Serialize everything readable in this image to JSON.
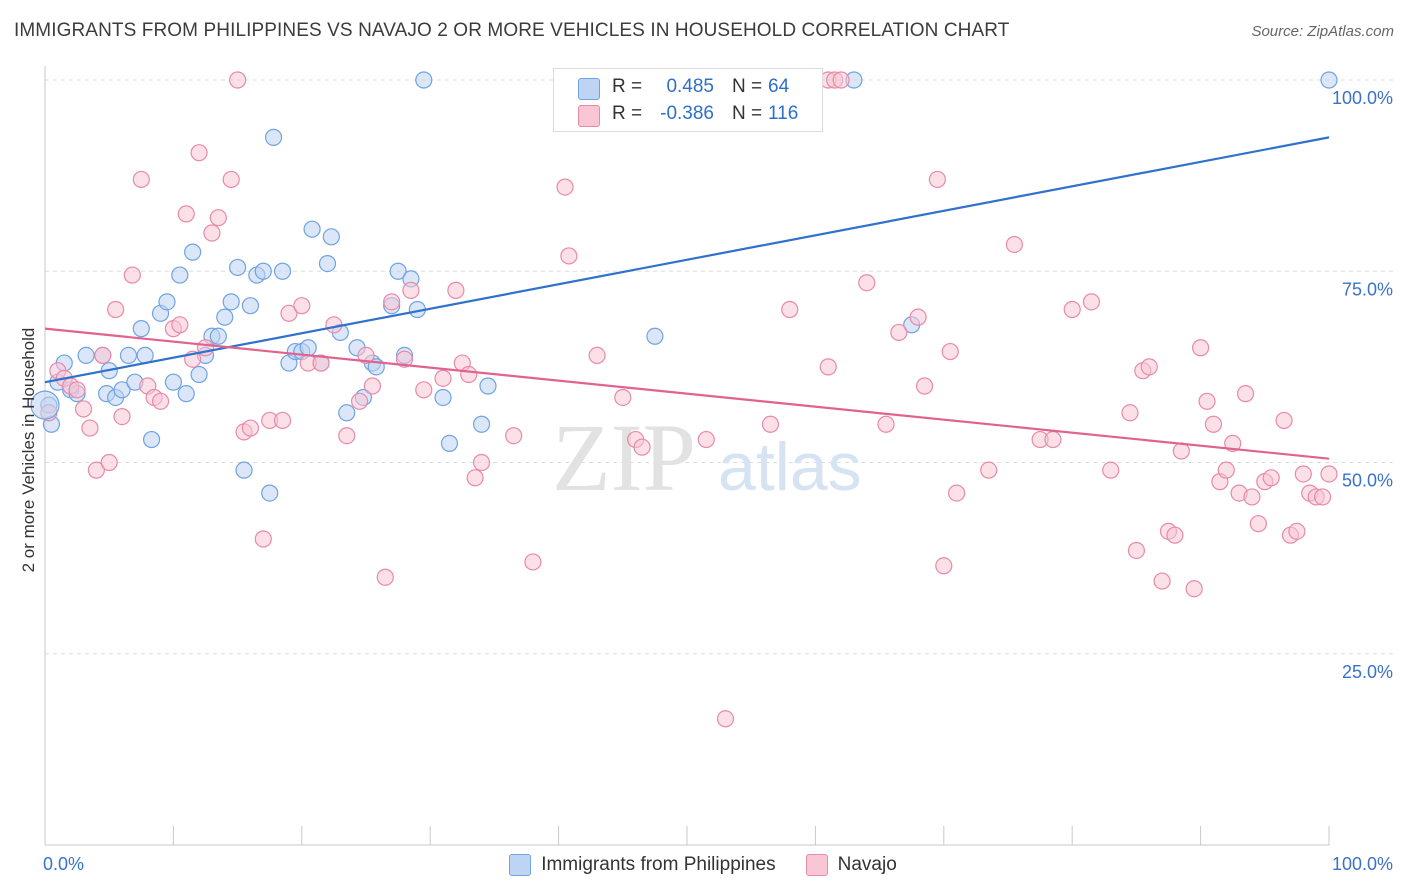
{
  "title": "IMMIGRANTS FROM PHILIPPINES VS NAVAJO 2 OR MORE VEHICLES IN HOUSEHOLD CORRELATION CHART",
  "source": "Source: ZipAtlas.com",
  "watermark": {
    "zip": "ZIP",
    "atlas": "atlas"
  },
  "stats": [
    {
      "r_label": "R =",
      "r_value": "0.485",
      "n_label": "N =",
      "n_value": "64",
      "color": "#6fa3e3",
      "fill": "#bdd4f3"
    },
    {
      "r_label": "R =",
      "r_value": "-0.386",
      "n_label": "N =",
      "n_value": "116",
      "color": "#e88aa8",
      "fill": "#f8c6d5"
    }
  ],
  "legend": [
    {
      "label": "Immigrants from Philippines",
      "fill": "#bdd4f3",
      "stroke": "#6fa3e3"
    },
    {
      "label": "Navajo",
      "fill": "#f8c6d5",
      "stroke": "#e88aa8"
    }
  ],
  "chart_data": {
    "type": "scatter",
    "ylabel": "2 or more Vehicles in Household",
    "xlim": [
      0,
      100
    ],
    "ylim": [
      0,
      100
    ],
    "x_tick_labels": [
      "0.0%",
      "100.0%"
    ],
    "y_ticks": [
      25,
      50,
      75,
      100
    ],
    "y_tick_labels": [
      "25.0%",
      "50.0%",
      "75.0%",
      "100.0%"
    ],
    "grid": true,
    "series": [
      {
        "name": "Immigrants from Philippines",
        "color": "#6fa3e3",
        "fill": "#bdd4f3",
        "line_color": "#2f72cc",
        "trend": [
          [
            0,
            60.5
          ],
          [
            100,
            92.5
          ]
        ],
        "points": [
          [
            0.3,
            57.5
          ],
          [
            0.5,
            55.0
          ],
          [
            1.0,
            60.5
          ],
          [
            1.5,
            63.0
          ],
          [
            2.0,
            59.5
          ],
          [
            2.5,
            59.0
          ],
          [
            3.2,
            64.0
          ],
          [
            4.5,
            64.0
          ],
          [
            4.8,
            59.0
          ],
          [
            5.0,
            62.0
          ],
          [
            5.5,
            58.5
          ],
          [
            6.0,
            59.5
          ],
          [
            6.5,
            64.0
          ],
          [
            7.0,
            60.5
          ],
          [
            7.5,
            67.5
          ],
          [
            7.8,
            64.0
          ],
          [
            8.3,
            53.0
          ],
          [
            9.0,
            69.5
          ],
          [
            9.5,
            71.0
          ],
          [
            10.0,
            60.5
          ],
          [
            10.5,
            74.5
          ],
          [
            11.0,
            59.0
          ],
          [
            11.5,
            77.5
          ],
          [
            12.0,
            61.5
          ],
          [
            12.5,
            64.0
          ],
          [
            13.0,
            66.5
          ],
          [
            13.5,
            66.5
          ],
          [
            14.0,
            69.0
          ],
          [
            14.5,
            71.0
          ],
          [
            15.0,
            75.5
          ],
          [
            15.5,
            49.0
          ],
          [
            16.0,
            70.5
          ],
          [
            16.5,
            74.5
          ],
          [
            17.0,
            75.0
          ],
          [
            17.5,
            46.0
          ],
          [
            17.8,
            92.5
          ],
          [
            18.5,
            75.0
          ],
          [
            19.0,
            63.0
          ],
          [
            19.5,
            64.5
          ],
          [
            20.0,
            64.5
          ],
          [
            20.5,
            65.0
          ],
          [
            20.8,
            80.5
          ],
          [
            21.5,
            63.0
          ],
          [
            22.0,
            76.0
          ],
          [
            22.3,
            79.5
          ],
          [
            23.0,
            67.0
          ],
          [
            23.5,
            56.5
          ],
          [
            24.3,
            65.0
          ],
          [
            24.8,
            58.5
          ],
          [
            25.5,
            63.0
          ],
          [
            25.8,
            62.5
          ],
          [
            27.5,
            75.0
          ],
          [
            28.0,
            64.0
          ],
          [
            27.0,
            70.5
          ],
          [
            28.5,
            74.0
          ],
          [
            29.0,
            70.0
          ],
          [
            29.5,
            100.0
          ],
          [
            31.0,
            58.5
          ],
          [
            31.5,
            52.5
          ],
          [
            34.0,
            55.0
          ],
          [
            34.5,
            60.0
          ],
          [
            47.5,
            66.5
          ],
          [
            63.0,
            100.0
          ],
          [
            67.5,
            68.0
          ],
          [
            100.0,
            100.0
          ]
        ]
      },
      {
        "name": "Navajo",
        "color": "#e88aa8",
        "fill": "#f8c6d5",
        "line_color": "#e2628f",
        "trend": [
          [
            0,
            67.5
          ],
          [
            100,
            50.5
          ]
        ],
        "points": [
          [
            0.3,
            56.5
          ],
          [
            1.0,
            62.0
          ],
          [
            1.5,
            61.0
          ],
          [
            2.0,
            60.0
          ],
          [
            2.5,
            59.5
          ],
          [
            3.0,
            57.0
          ],
          [
            3.5,
            54.5
          ],
          [
            4.0,
            49.0
          ],
          [
            4.5,
            64.0
          ],
          [
            5.0,
            50.0
          ],
          [
            5.5,
            70.0
          ],
          [
            6.0,
            56.0
          ],
          [
            6.8,
            74.5
          ],
          [
            7.5,
            87.0
          ],
          [
            8.0,
            60.0
          ],
          [
            8.5,
            58.5
          ],
          [
            9.0,
            58.0
          ],
          [
            10.0,
            67.5
          ],
          [
            10.5,
            68.0
          ],
          [
            11.0,
            82.5
          ],
          [
            11.5,
            63.5
          ],
          [
            12.0,
            90.5
          ],
          [
            12.5,
            65.0
          ],
          [
            13.0,
            80.0
          ],
          [
            13.5,
            82.0
          ],
          [
            14.5,
            87.0
          ],
          [
            15.0,
            100.0
          ],
          [
            15.5,
            54.0
          ],
          [
            16.0,
            54.5
          ],
          [
            17.0,
            40.0
          ],
          [
            17.5,
            55.5
          ],
          [
            18.5,
            55.5
          ],
          [
            19.0,
            69.5
          ],
          [
            20.0,
            70.5
          ],
          [
            20.5,
            63.0
          ],
          [
            21.5,
            63.0
          ],
          [
            22.5,
            68.0
          ],
          [
            23.5,
            53.5
          ],
          [
            24.5,
            58.0
          ],
          [
            25.0,
            64.0
          ],
          [
            25.5,
            60.0
          ],
          [
            26.5,
            35.0
          ],
          [
            27.0,
            71.0
          ],
          [
            28.0,
            63.5
          ],
          [
            28.5,
            72.5
          ],
          [
            29.5,
            59.5
          ],
          [
            31.0,
            61.0
          ],
          [
            32.0,
            72.5
          ],
          [
            32.5,
            63.0
          ],
          [
            33.0,
            61.5
          ],
          [
            33.5,
            48.0
          ],
          [
            34.0,
            50.0
          ],
          [
            36.5,
            53.5
          ],
          [
            38.0,
            37.0
          ],
          [
            40.5,
            86.0
          ],
          [
            40.8,
            77.0
          ],
          [
            43.0,
            64.0
          ],
          [
            45.0,
            58.5
          ],
          [
            46.0,
            53.0
          ],
          [
            46.5,
            52.0
          ],
          [
            51.5,
            53.0
          ],
          [
            53.0,
            16.5
          ],
          [
            56.5,
            55.0
          ],
          [
            58.0,
            70.0
          ],
          [
            61.0,
            100.0
          ],
          [
            61.5,
            100.0
          ],
          [
            62.0,
            100.0
          ],
          [
            61.0,
            62.5
          ],
          [
            64.0,
            73.5
          ],
          [
            65.5,
            55.0
          ],
          [
            66.5,
            67.0
          ],
          [
            68.0,
            69.0
          ],
          [
            68.5,
            60.0
          ],
          [
            69.5,
            87.0
          ],
          [
            70.0,
            36.5
          ],
          [
            70.5,
            64.5
          ],
          [
            71.0,
            46.0
          ],
          [
            73.5,
            49.0
          ],
          [
            75.5,
            78.5
          ],
          [
            77.5,
            53.0
          ],
          [
            78.5,
            53.0
          ],
          [
            80.0,
            70.0
          ],
          [
            81.5,
            71.0
          ],
          [
            83.0,
            49.0
          ],
          [
            84.5,
            56.5
          ],
          [
            85.0,
            38.5
          ],
          [
            85.5,
            62.0
          ],
          [
            86.0,
            62.5
          ],
          [
            87.0,
            34.5
          ],
          [
            87.5,
            41.0
          ],
          [
            88.0,
            40.5
          ],
          [
            88.5,
            51.5
          ],
          [
            89.5,
            33.5
          ],
          [
            90.0,
            65.0
          ],
          [
            90.5,
            58.0
          ],
          [
            91.0,
            55.0
          ],
          [
            91.5,
            47.5
          ],
          [
            92.0,
            49.0
          ],
          [
            92.5,
            52.5
          ],
          [
            93.0,
            46.0
          ],
          [
            93.5,
            59.0
          ],
          [
            94.0,
            45.5
          ],
          [
            94.5,
            42.0
          ],
          [
            95.0,
            47.5
          ],
          [
            95.5,
            48.0
          ],
          [
            96.5,
            55.5
          ],
          [
            97.0,
            40.5
          ],
          [
            97.5,
            41.0
          ],
          [
            98.0,
            48.5
          ],
          [
            98.5,
            46.0
          ],
          [
            99.0,
            45.5
          ],
          [
            99.5,
            45.5
          ],
          [
            100.0,
            48.5
          ]
        ]
      }
    ]
  }
}
